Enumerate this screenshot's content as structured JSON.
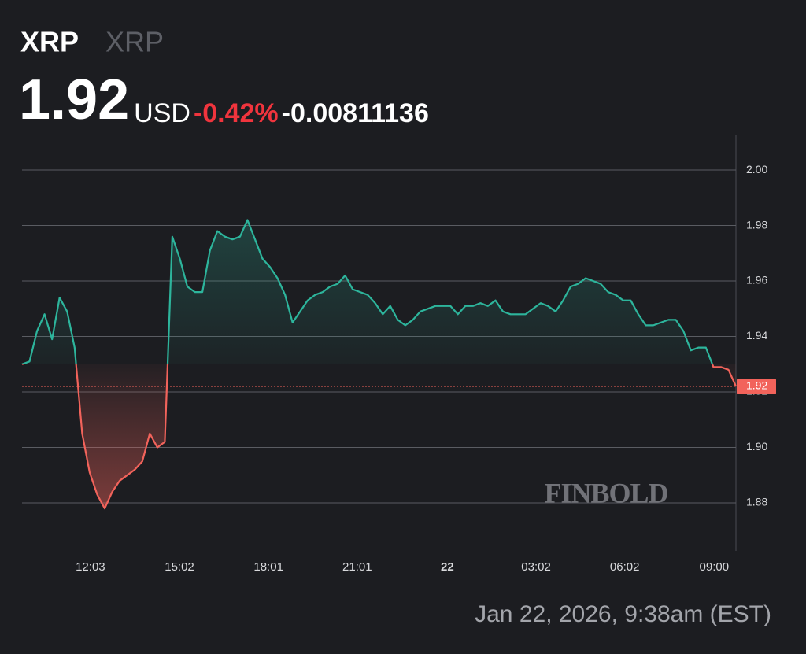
{
  "header": {
    "symbol": "XRP",
    "name": "XRP",
    "price": "1.92",
    "currency": "USD",
    "change_pct": "-0.42%",
    "change": "-0.00811136"
  },
  "chart_data": {
    "type": "line",
    "values": [
      1.93,
      1.931,
      1.942,
      1.948,
      1.939,
      1.954,
      1.949,
      1.936,
      1.905,
      1.891,
      1.883,
      1.878,
      1.884,
      1.888,
      1.89,
      1.892,
      1.895,
      1.905,
      1.9,
      1.902,
      1.976,
      1.968,
      1.958,
      1.956,
      1.956,
      1.971,
      1.978,
      1.976,
      1.975,
      1.976,
      1.982,
      1.975,
      1.968,
      1.965,
      1.961,
      1.955,
      1.945,
      1.949,
      1.953,
      1.955,
      1.956,
      1.958,
      1.959,
      1.962,
      1.957,
      1.956,
      1.955,
      1.952,
      1.948,
      1.951,
      1.946,
      1.944,
      1.946,
      1.949,
      1.95,
      1.951,
      1.951,
      1.951,
      1.948,
      1.951,
      1.951,
      1.952,
      1.951,
      1.953,
      1.949,
      1.948,
      1.948,
      1.948,
      1.95,
      1.952,
      1.951,
      1.949,
      1.953,
      1.958,
      1.959,
      1.961,
      1.96,
      1.959,
      1.956,
      1.955,
      1.953,
      1.953,
      1.948,
      1.944,
      1.944,
      1.945,
      1.946,
      1.946,
      1.942,
      1.935,
      1.936,
      1.936,
      1.929,
      1.929,
      1.928,
      1.922
    ],
    "value_labels": [
      null,
      null,
      null,
      null,
      null,
      null,
      null,
      null,
      null,
      null,
      null,
      null,
      null,
      null,
      null,
      null,
      null,
      null,
      null,
      null,
      null,
      null,
      null,
      null,
      null,
      null,
      null,
      null,
      null,
      null,
      null,
      null,
      null,
      null,
      null,
      null,
      null,
      null,
      null,
      null,
      null,
      null,
      null,
      null,
      null,
      null,
      null,
      null,
      null,
      null,
      null,
      null,
      null,
      null,
      null,
      null,
      null,
      null,
      null,
      null,
      null,
      null,
      null,
      null,
      null,
      null,
      null,
      null,
      null,
      null,
      null,
      null,
      null,
      null,
      null,
      null,
      null,
      null,
      null,
      null,
      null,
      null,
      null,
      null,
      null,
      null,
      null,
      null,
      null,
      null,
      null,
      null,
      null,
      null,
      null,
      "1.92"
    ],
    "baseline": 1.93,
    "up_color": "#2db59c",
    "down_color": "#f2635b",
    "xlim": [
      0,
      95
    ],
    "xticks": [
      {
        "value": 9.1,
        "label": "12:03"
      },
      {
        "value": 20.95,
        "label": "15:02"
      },
      {
        "value": 32.8,
        "label": "18:01"
      },
      {
        "value": 44.6,
        "label": "21:01"
      },
      {
        "value": 56.6,
        "label": "22"
      },
      {
        "value": 68.4,
        "label": "03:02"
      },
      {
        "value": 80.2,
        "label": "06:02"
      },
      {
        "value": 92.1,
        "label": "09:00"
      }
    ],
    "ylim": [
      1.8627,
      2.0125
    ],
    "yticks": [
      {
        "value": 1.88,
        "label": "1.88"
      },
      {
        "value": 1.9,
        "label": "1.90"
      },
      {
        "value": 1.92,
        "label": "1.92"
      },
      {
        "value": 1.94,
        "label": "1.94"
      },
      {
        "value": 1.96,
        "label": "1.96"
      },
      {
        "value": 1.98,
        "label": "1.98"
      },
      {
        "value": 2.0,
        "label": "2.00"
      }
    ],
    "grid": true,
    "watermark": "FINBOLD"
  },
  "footer": {
    "timestamp": "Jan 22, 2026, 9:38am (EST)"
  }
}
